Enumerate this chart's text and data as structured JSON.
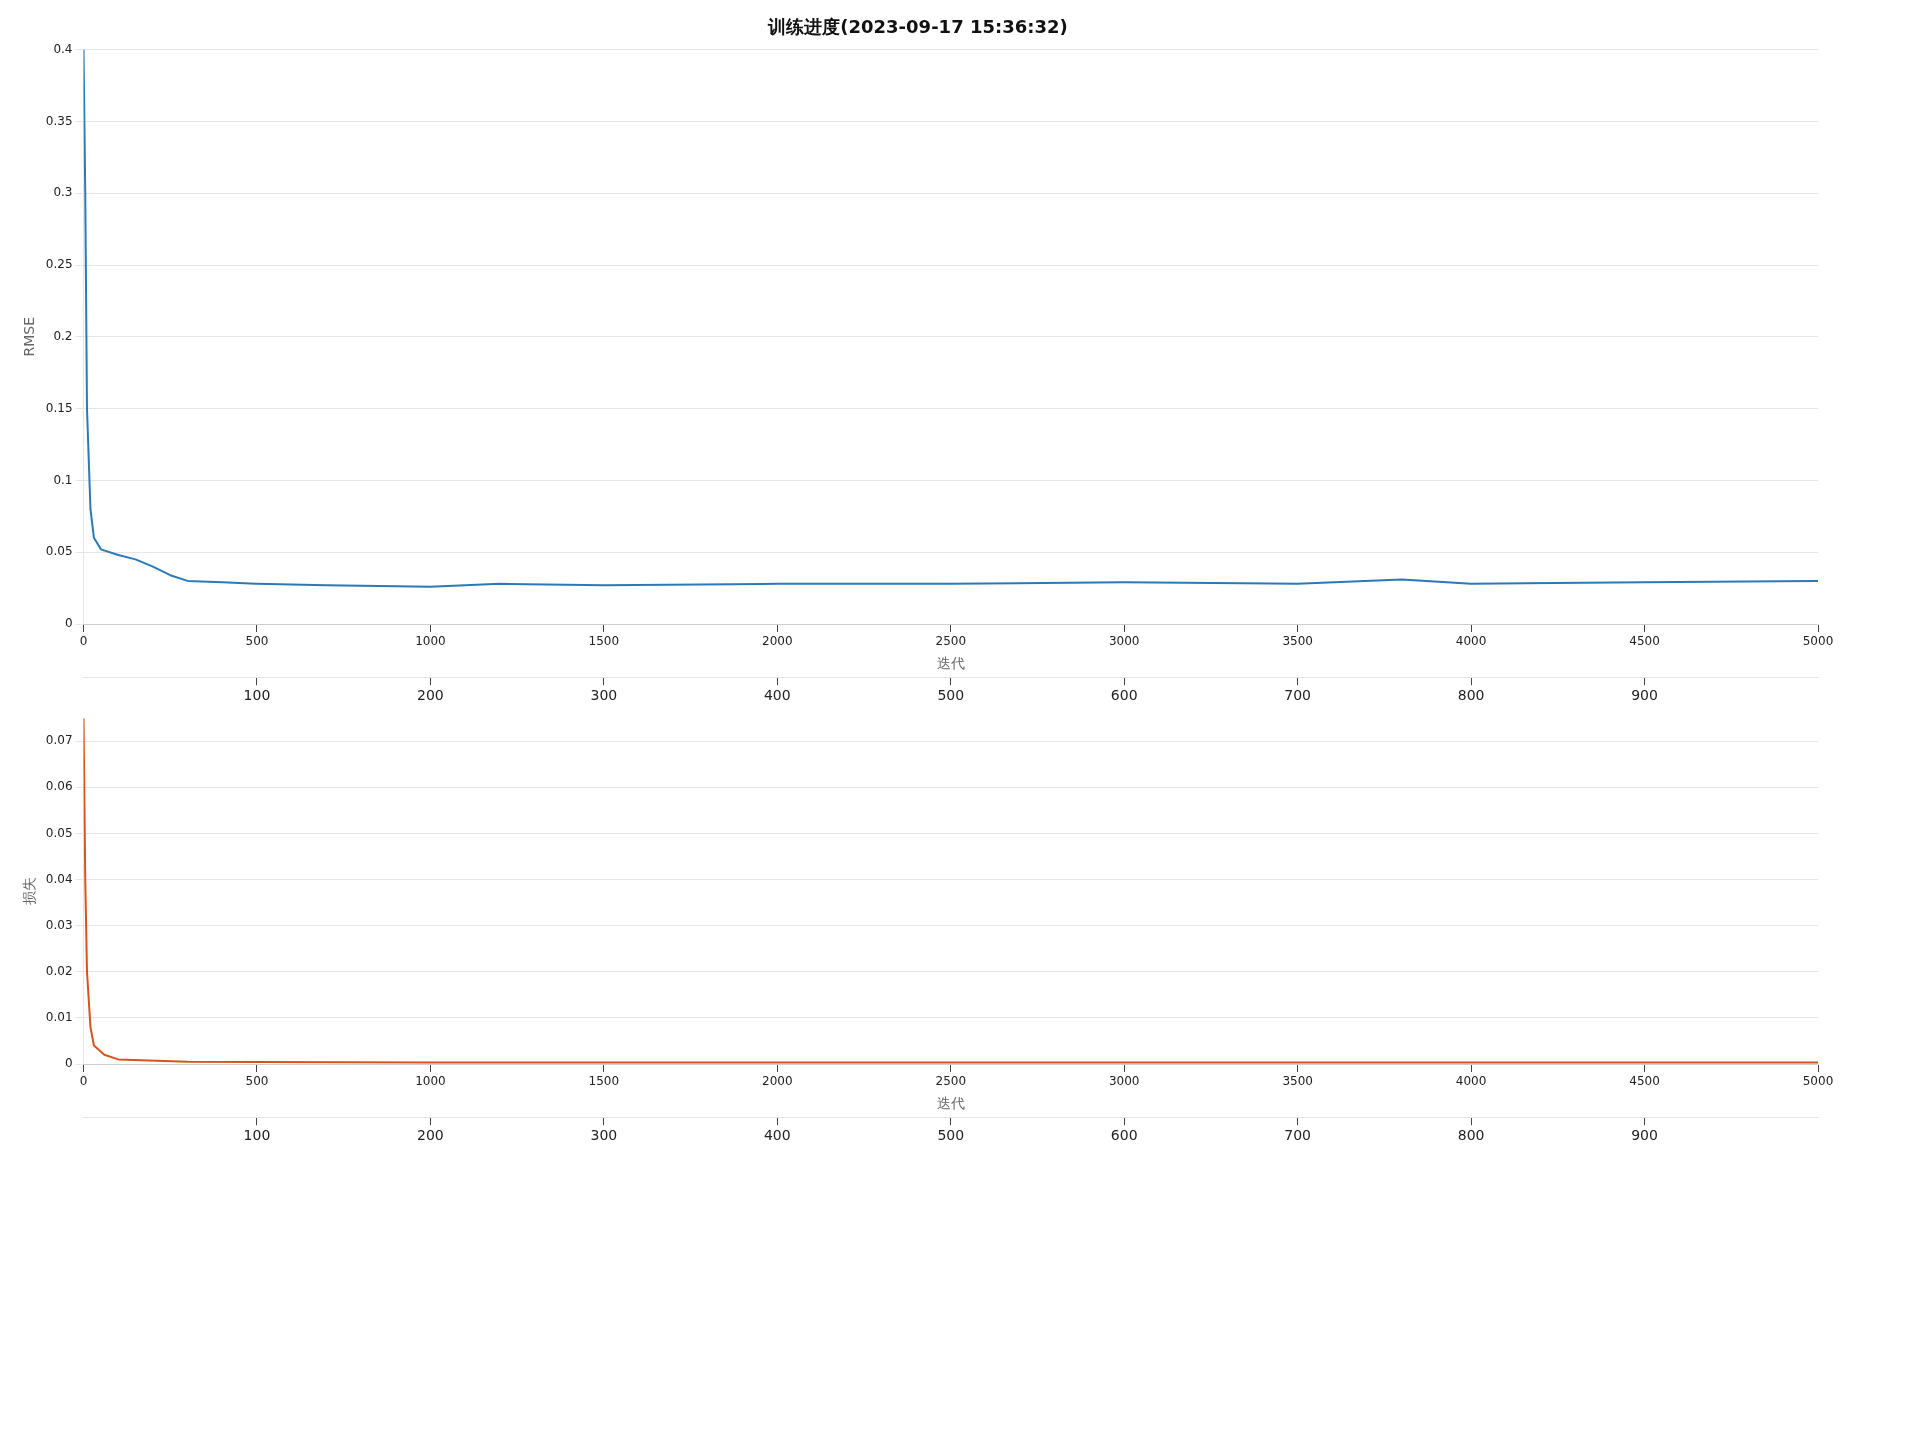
{
  "chart_data": [
    {
      "type": "line",
      "title": "训练进度(2023-09-17 15:36:32)",
      "xlabel": "迭代",
      "ylabel": "RMSE",
      "xlim": [
        0,
        5000
      ],
      "xticks": [
        0,
        500,
        1000,
        1500,
        2000,
        2500,
        3000,
        3500,
        4000,
        4500,
        5000
      ],
      "x2lim": [
        0,
        1000
      ],
      "x2ticks": [
        100,
        200,
        300,
        400,
        500,
        600,
        700,
        800,
        900
      ],
      "ylim": [
        0,
        0.4
      ],
      "yticks": [
        0,
        0.05,
        0.1,
        0.15,
        0.2,
        0.25,
        0.3,
        0.35,
        0.4
      ],
      "grid": "y",
      "series": [
        {
          "color": "#2a7ab8",
          "x": [
            0,
            5,
            10,
            20,
            30,
            50,
            100,
            150,
            200,
            250,
            300,
            400,
            500,
            700,
            1000,
            1200,
            1500,
            2000,
            2500,
            3000,
            3500,
            3800,
            4000,
            4500,
            5000
          ],
          "values": [
            0.4,
            0.3,
            0.15,
            0.08,
            0.06,
            0.052,
            0.048,
            0.045,
            0.04,
            0.034,
            0.03,
            0.029,
            0.028,
            0.027,
            0.026,
            0.028,
            0.027,
            0.028,
            0.028,
            0.029,
            0.028,
            0.031,
            0.028,
            0.029,
            0.03
          ]
        }
      ]
    },
    {
      "type": "line",
      "xlabel": "迭代",
      "ylabel": "损失",
      "xlim": [
        0,
        5000
      ],
      "xticks": [
        0,
        500,
        1000,
        1500,
        2000,
        2500,
        3000,
        3500,
        4000,
        4500,
        5000
      ],
      "x2lim": [
        0,
        1000
      ],
      "x2ticks": [
        100,
        200,
        300,
        400,
        500,
        600,
        700,
        800,
        900
      ],
      "ylim": [
        0,
        0.075
      ],
      "yticks": [
        0,
        0.01,
        0.02,
        0.03,
        0.04,
        0.05,
        0.06,
        0.07
      ],
      "grid": "y",
      "series": [
        {
          "color": "#d95319",
          "x": [
            0,
            5,
            10,
            20,
            30,
            60,
            100,
            300,
            1000,
            5000
          ],
          "values": [
            0.075,
            0.04,
            0.02,
            0.008,
            0.004,
            0.002,
            0.001,
            0.0005,
            0.0003,
            0.0003
          ]
        }
      ]
    }
  ]
}
